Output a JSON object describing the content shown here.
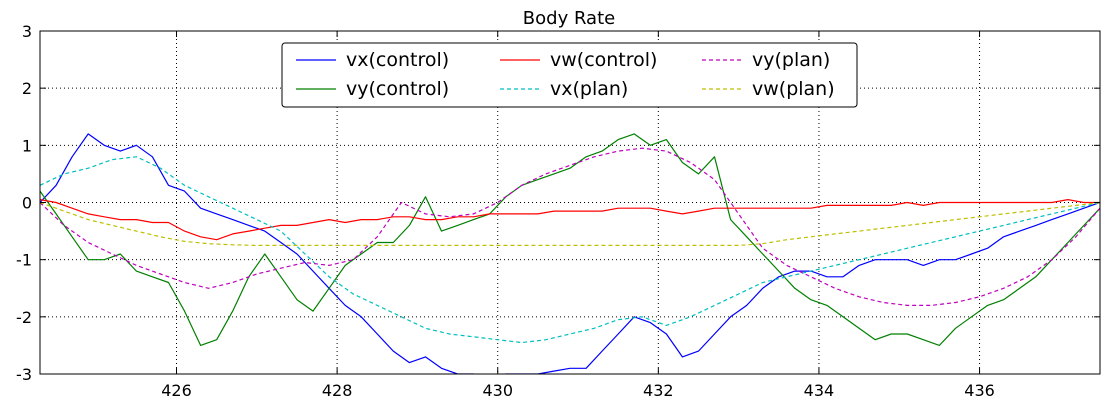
{
  "chart_data": {
    "type": "line",
    "title": "Body Rate",
    "xlabel": "",
    "ylabel": "",
    "xlim": [
      424.3,
      437.5
    ],
    "ylim": [
      -3,
      3
    ],
    "x_ticks": [
      426,
      428,
      430,
      432,
      434,
      436
    ],
    "y_ticks": [
      -3,
      -2,
      -1,
      0,
      1,
      2,
      3
    ],
    "grid": true,
    "legend": {
      "placement": "top-center",
      "columns": 3
    },
    "series": [
      {
        "name": "vx(control)",
        "color": "#0000ff",
        "style": "solid",
        "x": [
          424.3,
          424.5,
          424.7,
          424.9,
          425.1,
          425.3,
          425.5,
          425.7,
          425.9,
          426.1,
          426.3,
          426.5,
          426.7,
          426.9,
          427.1,
          427.3,
          427.5,
          427.7,
          427.9,
          428.1,
          428.3,
          428.5,
          428.7,
          428.9,
          429.1,
          429.3,
          429.5,
          429.7,
          429.9,
          430.1,
          430.3,
          430.5,
          430.7,
          430.9,
          431.1,
          431.3,
          431.5,
          431.7,
          431.9,
          432.1,
          432.3,
          432.5,
          432.7,
          432.9,
          433.1,
          433.3,
          433.5,
          433.7,
          433.9,
          434.1,
          434.3,
          434.5,
          434.7,
          434.9,
          435.1,
          435.3,
          435.5,
          435.7,
          435.9,
          436.1,
          436.3,
          436.5,
          436.7,
          436.9,
          437.1,
          437.3,
          437.5
        ],
        "y": [
          0.0,
          0.3,
          0.8,
          1.2,
          1.0,
          0.9,
          1.0,
          0.8,
          0.3,
          0.2,
          -0.1,
          -0.2,
          -0.3,
          -0.4,
          -0.5,
          -0.7,
          -0.9,
          -1.2,
          -1.5,
          -1.8,
          -2.0,
          -2.3,
          -2.6,
          -2.8,
          -2.7,
          -2.9,
          -3.0,
          -3.0,
          -3.1,
          -3.0,
          -3.0,
          -3.0,
          -2.95,
          -2.9,
          -2.9,
          -2.6,
          -2.3,
          -2.0,
          -2.1,
          -2.3,
          -2.7,
          -2.6,
          -2.3,
          -2.0,
          -1.8,
          -1.5,
          -1.3,
          -1.2,
          -1.2,
          -1.3,
          -1.3,
          -1.1,
          -1.0,
          -1.0,
          -1.0,
          -1.1,
          -1.0,
          -1.0,
          -0.9,
          -0.8,
          -0.6,
          -0.5,
          -0.4,
          -0.3,
          -0.2,
          -0.1,
          0.0
        ]
      },
      {
        "name": "vy(control)",
        "color": "#008000",
        "style": "solid",
        "x": [
          424.3,
          424.5,
          424.7,
          424.9,
          425.1,
          425.3,
          425.5,
          425.7,
          425.9,
          426.1,
          426.3,
          426.5,
          426.7,
          426.9,
          427.1,
          427.3,
          427.5,
          427.7,
          427.9,
          428.1,
          428.3,
          428.5,
          428.7,
          428.9,
          429.1,
          429.3,
          429.5,
          429.7,
          429.9,
          430.1,
          430.3,
          430.5,
          430.7,
          430.9,
          431.1,
          431.3,
          431.5,
          431.7,
          431.9,
          432.1,
          432.3,
          432.5,
          432.7,
          432.9,
          433.1,
          433.3,
          433.5,
          433.7,
          433.9,
          434.1,
          434.3,
          434.5,
          434.7,
          434.9,
          435.1,
          435.3,
          435.5,
          435.7,
          435.9,
          436.1,
          436.3,
          436.5,
          436.7,
          436.9,
          437.1,
          437.3,
          437.5
        ],
        "y": [
          0.2,
          -0.2,
          -0.6,
          -1.0,
          -1.0,
          -0.9,
          -1.2,
          -1.3,
          -1.4,
          -1.9,
          -2.5,
          -2.4,
          -1.9,
          -1.3,
          -0.9,
          -1.3,
          -1.7,
          -1.9,
          -1.5,
          -1.1,
          -0.9,
          -0.7,
          -0.7,
          -0.4,
          0.1,
          -0.5,
          -0.4,
          -0.3,
          -0.2,
          0.1,
          0.3,
          0.4,
          0.5,
          0.6,
          0.8,
          0.9,
          1.1,
          1.2,
          1.0,
          1.1,
          0.7,
          0.5,
          0.8,
          -0.3,
          -0.6,
          -0.9,
          -1.2,
          -1.5,
          -1.7,
          -1.8,
          -2.0,
          -2.2,
          -2.4,
          -2.3,
          -2.3,
          -2.4,
          -2.5,
          -2.2,
          -2.0,
          -1.8,
          -1.7,
          -1.5,
          -1.3,
          -1.0,
          -0.7,
          -0.4,
          -0.1
        ]
      },
      {
        "name": "vw(control)",
        "color": "#ff0000",
        "style": "solid",
        "x": [
          424.3,
          424.5,
          424.7,
          424.9,
          425.1,
          425.3,
          425.5,
          425.7,
          425.9,
          426.1,
          426.3,
          426.5,
          426.7,
          426.9,
          427.1,
          427.3,
          427.5,
          427.7,
          427.9,
          428.1,
          428.3,
          428.5,
          428.7,
          428.9,
          429.1,
          429.3,
          429.5,
          429.7,
          429.9,
          430.1,
          430.3,
          430.5,
          430.7,
          430.9,
          431.1,
          431.3,
          431.5,
          431.7,
          431.9,
          432.1,
          432.3,
          432.5,
          432.7,
          432.9,
          433.1,
          433.3,
          433.5,
          433.7,
          433.9,
          434.1,
          434.3,
          434.5,
          434.7,
          434.9,
          435.1,
          435.3,
          435.5,
          435.7,
          435.9,
          436.1,
          436.3,
          436.5,
          436.7,
          436.9,
          437.1,
          437.3,
          437.5
        ],
        "y": [
          0.05,
          0.0,
          -0.1,
          -0.2,
          -0.25,
          -0.3,
          -0.3,
          -0.35,
          -0.35,
          -0.5,
          -0.6,
          -0.65,
          -0.55,
          -0.5,
          -0.45,
          -0.4,
          -0.4,
          -0.35,
          -0.3,
          -0.35,
          -0.3,
          -0.3,
          -0.25,
          -0.25,
          -0.3,
          -0.3,
          -0.25,
          -0.25,
          -0.2,
          -0.2,
          -0.2,
          -0.2,
          -0.15,
          -0.15,
          -0.15,
          -0.15,
          -0.1,
          -0.1,
          -0.1,
          -0.15,
          -0.2,
          -0.15,
          -0.1,
          -0.1,
          -0.1,
          -0.1,
          -0.1,
          -0.1,
          -0.1,
          -0.05,
          -0.05,
          -0.05,
          -0.05,
          -0.05,
          0.0,
          -0.05,
          0.0,
          0.0,
          0.0,
          0.0,
          0.0,
          0.0,
          0.0,
          0.0,
          0.05,
          0.0,
          0.0
        ]
      },
      {
        "name": "vx(plan)",
        "color": "#00bfbf",
        "style": "dashed",
        "x": [
          424.3,
          424.6,
          424.9,
          425.2,
          425.5,
          425.8,
          426.1,
          426.4,
          426.7,
          427.0,
          427.3,
          427.6,
          427.9,
          428.2,
          428.5,
          428.8,
          429.1,
          429.4,
          429.7,
          430.0,
          430.3,
          430.6,
          430.9,
          431.2,
          431.5,
          431.8,
          432.1,
          432.4,
          432.7,
          433.0,
          433.3,
          433.6,
          433.9,
          434.2,
          434.5,
          434.8,
          435.1,
          435.4,
          435.7,
          436.0,
          436.3,
          436.6,
          436.9,
          437.2,
          437.5
        ],
        "y": [
          0.3,
          0.5,
          0.6,
          0.75,
          0.8,
          0.6,
          0.3,
          0.1,
          -0.1,
          -0.3,
          -0.5,
          -0.9,
          -1.3,
          -1.6,
          -1.8,
          -2.0,
          -2.2,
          -2.3,
          -2.35,
          -2.4,
          -2.45,
          -2.4,
          -2.3,
          -2.2,
          -2.05,
          -2.0,
          -2.15,
          -2.0,
          -1.8,
          -1.6,
          -1.4,
          -1.3,
          -1.2,
          -1.1,
          -1.0,
          -0.9,
          -0.8,
          -0.7,
          -0.6,
          -0.5,
          -0.4,
          -0.3,
          -0.2,
          -0.1,
          0.0
        ]
      },
      {
        "name": "vy(plan)",
        "color": "#bf00bf",
        "style": "dashed",
        "x": [
          424.3,
          424.6,
          424.9,
          425.2,
          425.5,
          425.8,
          426.1,
          426.4,
          426.7,
          427.0,
          427.3,
          427.6,
          427.9,
          428.2,
          428.5,
          428.8,
          429.1,
          429.4,
          429.7,
          430.0,
          430.3,
          430.6,
          430.9,
          431.2,
          431.5,
          431.8,
          432.1,
          432.4,
          432.7,
          433.0,
          433.3,
          433.6,
          433.9,
          434.2,
          434.5,
          434.8,
          435.1,
          435.4,
          435.7,
          436.0,
          436.3,
          436.6,
          436.9,
          437.2,
          437.5
        ],
        "y": [
          0.0,
          -0.4,
          -0.7,
          -0.9,
          -1.1,
          -1.25,
          -1.4,
          -1.5,
          -1.4,
          -1.25,
          -1.15,
          -1.05,
          -1.1,
          -1.0,
          -0.6,
          0.0,
          -0.2,
          -0.25,
          -0.2,
          0.0,
          0.3,
          0.5,
          0.65,
          0.8,
          0.9,
          0.95,
          0.9,
          0.7,
          0.4,
          -0.2,
          -0.8,
          -1.1,
          -1.3,
          -1.5,
          -1.65,
          -1.75,
          -1.8,
          -1.8,
          -1.75,
          -1.65,
          -1.5,
          -1.3,
          -1.0,
          -0.6,
          -0.1
        ]
      },
      {
        "name": "vw(plan)",
        "color": "#bfbf00",
        "style": "dashed",
        "x": [
          424.3,
          424.6,
          424.9,
          425.2,
          425.5,
          425.8,
          426.1,
          426.4,
          426.7,
          427.0,
          427.3,
          427.6,
          427.9,
          428.2,
          428.5,
          428.8,
          429.1,
          429.4,
          429.7,
          430.0,
          430.3,
          430.6,
          430.9,
          431.2,
          431.5,
          431.8,
          432.1,
          432.4,
          432.7,
          433.0,
          433.3,
          433.6,
          433.9,
          434.2,
          434.5,
          434.8,
          435.1,
          435.4,
          435.7,
          436.0,
          436.3,
          436.6,
          436.9,
          437.2,
          437.5
        ],
        "y": [
          0.0,
          -0.15,
          -0.3,
          -0.4,
          -0.5,
          -0.6,
          -0.68,
          -0.72,
          -0.74,
          -0.75,
          -0.75,
          -0.75,
          -0.75,
          -0.75,
          -0.75,
          -0.75,
          -0.75,
          -0.75,
          -0.75,
          -0.75,
          -0.75,
          -0.75,
          -0.75,
          -0.75,
          -0.75,
          -0.75,
          -0.75,
          -0.75,
          -0.75,
          -0.75,
          -0.72,
          -0.65,
          -0.6,
          -0.55,
          -0.5,
          -0.45,
          -0.4,
          -0.35,
          -0.3,
          -0.25,
          -0.2,
          -0.15,
          -0.1,
          -0.05,
          0.0
        ]
      }
    ]
  }
}
